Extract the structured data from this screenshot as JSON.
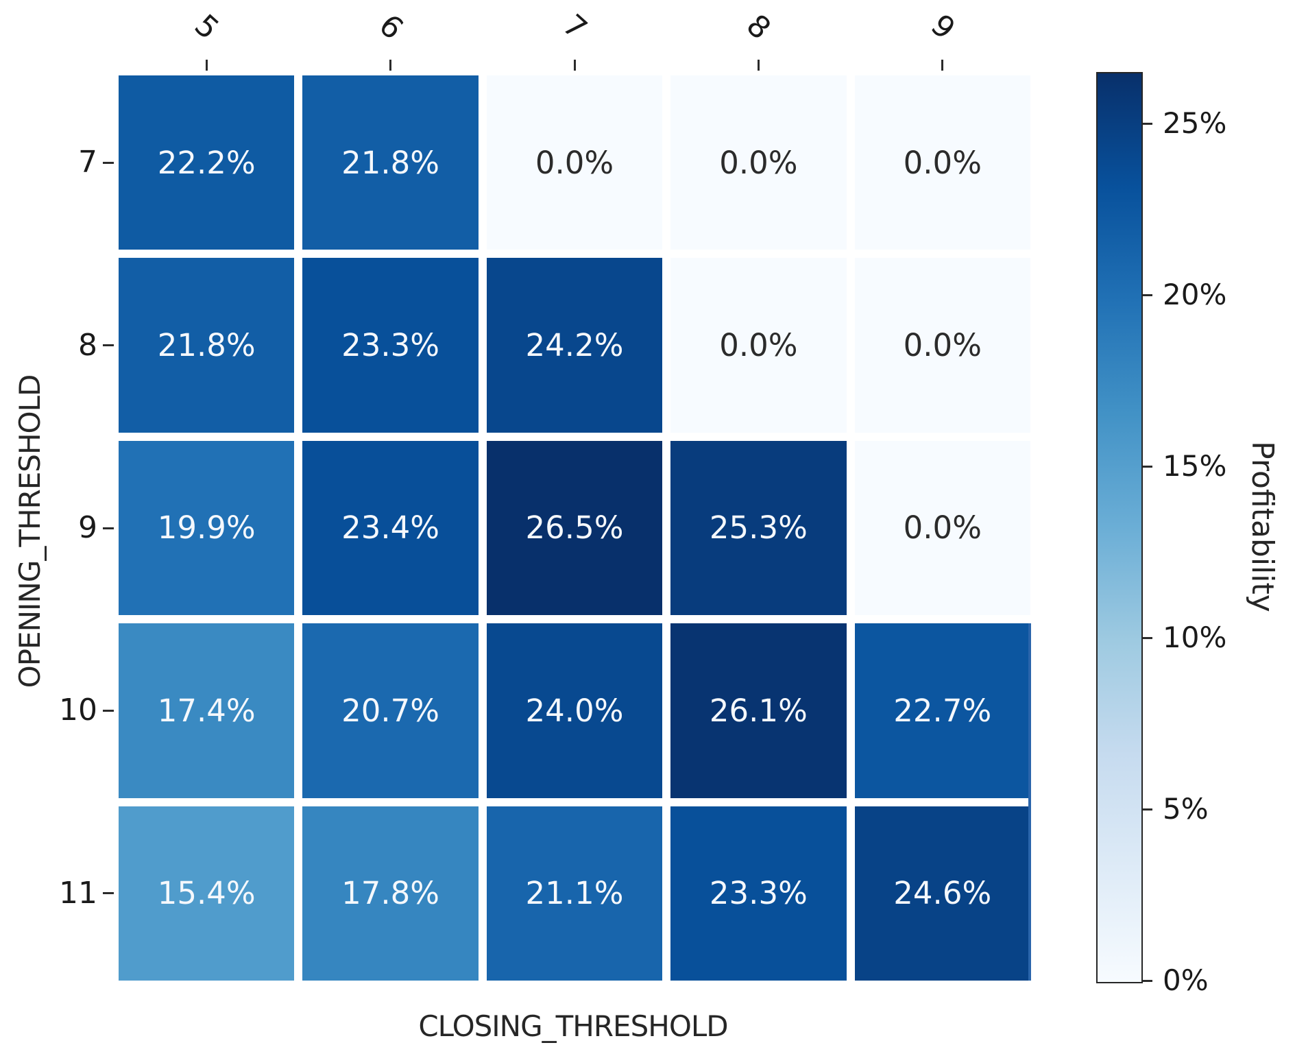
{
  "chart_data": {
    "type": "heatmap",
    "title": "",
    "xlabel": "CLOSING_THRESHOLD",
    "ylabel": "OPENING_THRESHOLD",
    "x_categories": [
      "5",
      "6",
      "7",
      "8",
      "9"
    ],
    "y_categories": [
      "7",
      "8",
      "9",
      "10",
      "11"
    ],
    "values": [
      [
        22.2,
        21.8,
        0.0,
        0.0,
        0.0
      ],
      [
        21.8,
        23.3,
        24.2,
        0.0,
        0.0
      ],
      [
        19.9,
        23.4,
        26.5,
        25.3,
        0.0
      ],
      [
        17.4,
        20.7,
        24.0,
        26.1,
        22.7
      ],
      [
        15.4,
        17.8,
        21.1,
        23.3,
        24.6
      ]
    ],
    "cell_labels": [
      [
        "22.2%",
        "21.8%",
        "0.0%",
        "0.0%",
        "0.0%"
      ],
      [
        "21.8%",
        "23.3%",
        "24.2%",
        "0.0%",
        "0.0%"
      ],
      [
        "19.9%",
        "23.4%",
        "26.5%",
        "25.3%",
        "0.0%"
      ],
      [
        "17.4%",
        "20.7%",
        "24.0%",
        "26.1%",
        "22.7%"
      ],
      [
        "15.4%",
        "17.8%",
        "21.1%",
        "23.3%",
        "24.6%"
      ]
    ],
    "vmin": 0,
    "vmax": 26.5,
    "colormap": "Blues",
    "colormap_anchors": [
      "#f7fbff",
      "#deebf7",
      "#c6dbef",
      "#9ecae1",
      "#6baed6",
      "#4292c6",
      "#2171b5",
      "#08519c",
      "#08306b"
    ],
    "grid_gap_color": "#ffffff",
    "legend_position": "right",
    "colorbar": {
      "label": "Profitability",
      "ticks": [
        "25%",
        "20%",
        "15%",
        "10%",
        "5%",
        "0%"
      ],
      "tick_values": [
        25,
        20,
        15,
        10,
        5,
        0
      ]
    }
  },
  "colors": {
    "background": "#ffffff",
    "tick_mark": "#2b2b2b",
    "tick_label": "#1a1a1a",
    "axis_label": "#262626",
    "cell_text_light": "#f5f8fc",
    "cell_text_dark": "#2b2b2b",
    "accent_line": "#2a65ab",
    "colorbar_border": "#262626"
  }
}
